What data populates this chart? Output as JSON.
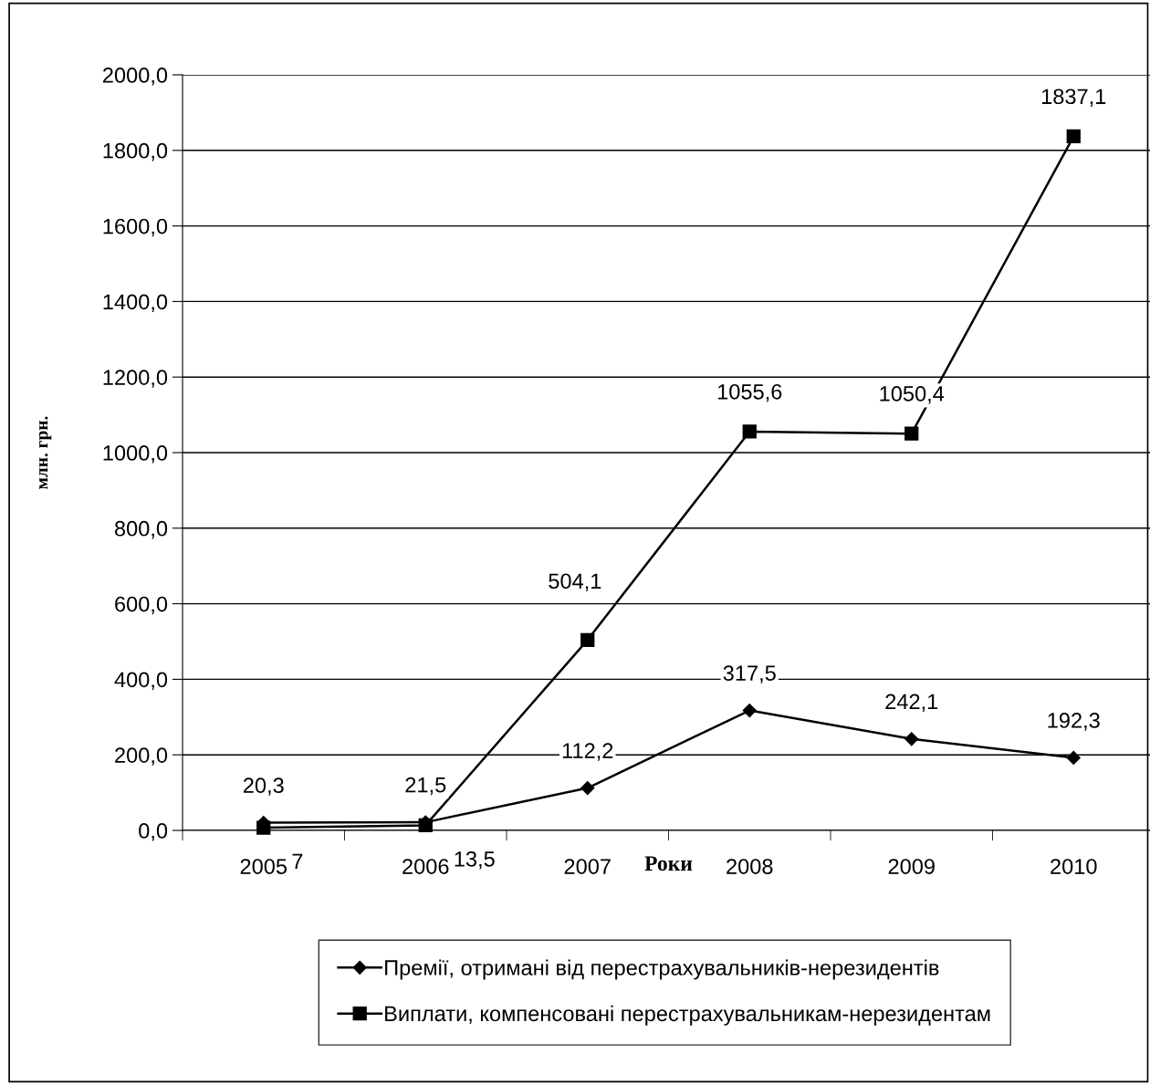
{
  "chart_data": {
    "type": "line",
    "xlabel": "Роки",
    "ylabel": "млн. грн.",
    "categories": [
      "2005",
      "2006",
      "2007",
      "2008",
      "2009",
      "2010"
    ],
    "series": [
      {
        "name": "Премії, отримані від перестрахувальників-нерезидентів",
        "color": "#000000",
        "marker": "diamond",
        "values": [
          20.3,
          21.5,
          112.2,
          317.5,
          242.1,
          192.3
        ],
        "value_labels": [
          "20,3",
          "21,5",
          "112,2",
          "317,5",
          "242,1",
          "192,3"
        ]
      },
      {
        "name": "Виплати, компенсовані перестрахувальникам-нерезидентам",
        "color": "#000000",
        "marker": "square",
        "values": [
          7,
          13.5,
          504.1,
          1055.6,
          1050.4,
          1837.1
        ],
        "value_labels": [
          "7",
          "13,5",
          "504,1",
          "1055,6",
          "1050,4",
          "1837,1"
        ]
      }
    ],
    "ylim": [
      0,
      2000
    ],
    "yticks": [
      {
        "value": 0,
        "label": "0,0"
      },
      {
        "value": 200,
        "label": "200,0"
      },
      {
        "value": 400,
        "label": "400,0"
      },
      {
        "value": 600,
        "label": "600,0"
      },
      {
        "value": 800,
        "label": "800,0"
      },
      {
        "value": 1000,
        "label": "1000,0"
      },
      {
        "value": 1200,
        "label": "1200,0"
      },
      {
        "value": 1400,
        "label": "1400,0"
      },
      {
        "value": 1600,
        "label": "1600,0"
      },
      {
        "value": 1800,
        "label": "1800,0"
      },
      {
        "value": 2000,
        "label": "2000,0"
      }
    ],
    "grid": "y",
    "legend": "bottom",
    "line_style": "solid"
  }
}
